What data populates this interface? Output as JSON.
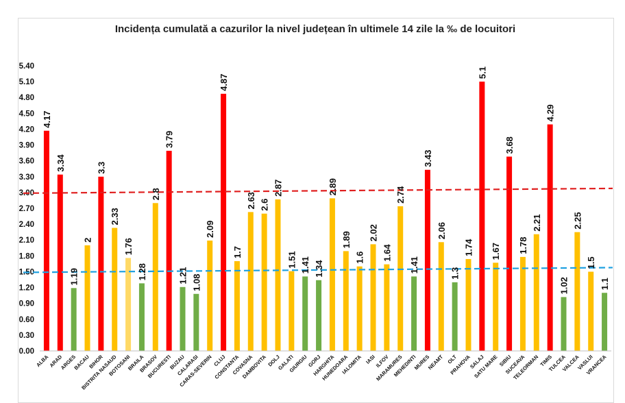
{
  "chart_data": {
    "type": "bar",
    "title": "Incidența cumulată a cazurilor la nivel județean în ultimele 14 zile la ‰ de locuitori",
    "xlabel": "",
    "ylabel": "",
    "ylim": [
      0,
      5.4
    ],
    "yticks": [
      "0.00",
      "0.30",
      "0.60",
      "0.90",
      "1.20",
      "1.50",
      "1.80",
      "2.10",
      "2.40",
      "2.70",
      "3.00",
      "3.30",
      "3.60",
      "3.90",
      "4.20",
      "4.50",
      "4.80",
      "5.10",
      "5.40"
    ],
    "categories": [
      "ALBA",
      "ARAD",
      "ARGES",
      "BACAU",
      "BIHOR",
      "BISTRITA NASAUD",
      "BOTOSANI",
      "BRAILA",
      "BRASOV",
      "BUCURESTI",
      "BUZAU",
      "CALARASI",
      "CARAS-SEVERIN",
      "CLUJ",
      "CONSTANTA",
      "COVASNA",
      "DAMBOVITA",
      "DOLJ",
      "GALATI",
      "GIURGIU",
      "GORJ",
      "HARGHITA",
      "HUNEDOARA",
      "IALOMITA",
      "IASI",
      "ILFOV",
      "MARAMURES",
      "MEHEDINTI",
      "MURES",
      "NEAMT",
      "OLT",
      "PRAHOVA",
      "SALAJ",
      "SATU MARE",
      "SIBIU",
      "SUCEAVA",
      "TELEORMAN",
      "TIMIS",
      "TULCEA",
      "VALCEA",
      "VASLUI",
      "VRANCEA"
    ],
    "values": [
      4.17,
      3.34,
      1.19,
      2,
      3.3,
      2.33,
      1.76,
      1.28,
      2.8,
      3.79,
      1.21,
      1.08,
      2.09,
      4.87,
      1.7,
      2.63,
      2.6,
      2.87,
      1.51,
      1.41,
      1.34,
      2.89,
      1.89,
      1.6,
      2.02,
      1.64,
      2.74,
      1.41,
      3.43,
      2.06,
      1.3,
      1.74,
      5.1,
      1.67,
      3.68,
      1.78,
      2.21,
      4.29,
      1.02,
      2.25,
      1.5,
      1.1
    ],
    "value_labels": [
      "4.17",
      "3.34",
      "1.19",
      "2",
      "3.3",
      "2.33",
      "1.76",
      "1.28",
      "2.8",
      "3.79",
      "1.21",
      "1.08",
      "2.09",
      "4.87",
      "1.7",
      "2.63",
      "2.6",
      "2.87",
      "1.51",
      "1.41",
      "1.34",
      "2.89",
      "1.89",
      "1.6",
      "2.02",
      "1.64",
      "2.74",
      "1.41",
      "3.43",
      "2.06",
      "1.3",
      "1.74",
      "5.1",
      "1.67",
      "3.68",
      "1.78",
      "2.21",
      "4.29",
      "1.02",
      "2.25",
      "1.5",
      "1.1"
    ],
    "colors": [
      "red",
      "red",
      "green",
      "yellow",
      "red",
      "yellow",
      "lightyellow",
      "green",
      "yellow",
      "red",
      "green",
      "green",
      "yellow",
      "red",
      "yellow",
      "yellow",
      "yellow",
      "yellow",
      "yellow",
      "green",
      "green",
      "yellow",
      "yellow",
      "yellow",
      "yellow",
      "yellow",
      "yellow",
      "green",
      "red",
      "yellow",
      "green",
      "yellow",
      "red",
      "yellow",
      "red",
      "yellow",
      "yellow",
      "red",
      "green",
      "yellow",
      "yellow",
      "green"
    ],
    "palette": {
      "red": "#ff0000",
      "yellow": "#ffc000",
      "lightyellow": "#ffd966",
      "green": "#70ad47"
    },
    "reference_lines": [
      {
        "value": 3.0,
        "color": "#e02020",
        "style": "dashed"
      },
      {
        "value": 1.5,
        "color": "#1ea0e0",
        "style": "dashed"
      }
    ],
    "grid": false,
    "legend": "none"
  }
}
